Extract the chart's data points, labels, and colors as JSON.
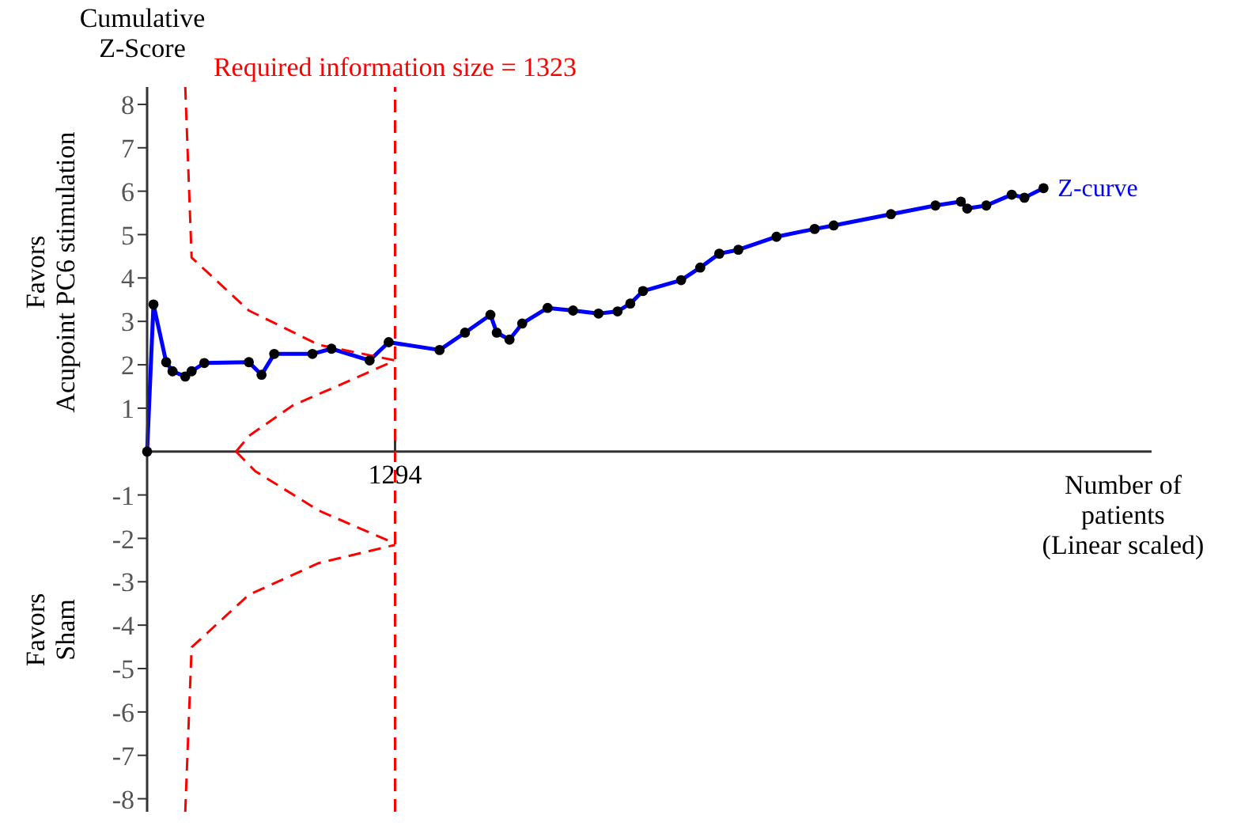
{
  "chart_data": {
    "type": "line",
    "ylabel": "Cumulative\nZ-Score",
    "xlabel": "Number of\npatients\n(Linear scaled)",
    "annotations": [
      "Favors\nAcupoint PC6 stimulation",
      "Favors\nSham",
      "Required information size = 1323"
    ],
    "categories": [
      null,
      null,
      null,
      null,
      null,
      null,
      null,
      null,
      null,
      null,
      null,
      null,
      null,
      null,
      null,
      null,
      null,
      null,
      null,
      null,
      null,
      null,
      null,
      null,
      null,
      null,
      null,
      null,
      null,
      null,
      null,
      null,
      null,
      null,
      null,
      null,
      null,
      null,
      null,
      "1294",
      null,
      null,
      null,
      null,
      null,
      null,
      null,
      null,
      null,
      null,
      null,
      null,
      null,
      null,
      null,
      null,
      null,
      null,
      null,
      null,
      null,
      null,
      null,
      null,
      null,
      null,
      null,
      null,
      null,
      null,
      null,
      null,
      null,
      null,
      null,
      null,
      null,
      null,
      null,
      null,
      null,
      null,
      null,
      null,
      null,
      null,
      null,
      null,
      null,
      null,
      null,
      null,
      null,
      null,
      null,
      null,
      null,
      null,
      null,
      null,
      null,
      null,
      null,
      null,
      null,
      null,
      null,
      null,
      null,
      null,
      null,
      null,
      null,
      null,
      null,
      null,
      null,
      null,
      null,
      null,
      null,
      null,
      null,
      null,
      null,
      null,
      null,
      null,
      null,
      null,
      null,
      null,
      null,
      null,
      null,
      null,
      null,
      null,
      null,
      null,
      null,
      null,
      null,
      null,
      null,
      null,
      null,
      null,
      null,
      null,
      null,
      null,
      null,
      null,
      null,
      null,
      null,
      null,
      null
    ],
    "ylim": [
      -8.3,
      8.4
    ],
    "yticks": [
      -8,
      -7,
      -6,
      -5,
      -4,
      -3,
      -2,
      -1,
      1,
      2,
      3,
      4,
      5,
      6,
      7,
      8
    ],
    "grid": false,
    "legend": false,
    "series": [
      {
        "name": "Z-curve",
        "color": "#0000ff",
        "marker": "circle",
        "line_style": "solid",
        "values": [
          0,
          3.39,
          null,
          2.06,
          1.85,
          null,
          1.73,
          1.85,
          null,
          2.04,
          null,
          null,
          null,
          null,
          null,
          null,
          2.06,
          null,
          1.77,
          null,
          2.25,
          null,
          null,
          null,
          null,
          null,
          2.25,
          null,
          null,
          2.37,
          null,
          null,
          null,
          null,
          null,
          2.1,
          null,
          null,
          2.52,
          null,
          null,
          null,
          null,
          null,
          null,
          null,
          2.34,
          null,
          null,
          null,
          2.74,
          null,
          null,
          null,
          3.15,
          2.74,
          null,
          2.58,
          null,
          2.95,
          null,
          null,
          null,
          3.31,
          null,
          null,
          null,
          3.25,
          null,
          null,
          null,
          3.18,
          null,
          null,
          3.23,
          null,
          3.41,
          null,
          3.7,
          null,
          null,
          null,
          null,
          null,
          3.95,
          null,
          null,
          4.24,
          null,
          null,
          4.56,
          null,
          null,
          4.65,
          null,
          null,
          null,
          null,
          null,
          4.95,
          null,
          null,
          null,
          null,
          null,
          5.13,
          null,
          null,
          5.21,
          null,
          null,
          null,
          null,
          null,
          null,
          null,
          null,
          5.47,
          null,
          null,
          null,
          null,
          null,
          null,
          5.67,
          null,
          null,
          null,
          5.76,
          5.6,
          null,
          null,
          5.67,
          null,
          null,
          null,
          5.92,
          null,
          5.85,
          null,
          null,
          6.07,
          null,
          null,
          null,
          null,
          null,
          null,
          null,
          null,
          null,
          null,
          null,
          null,
          null,
          null,
          null,
          null,
          null
        ]
      },
      {
        "color": "#ff0000",
        "marker": "none",
        "line_style": "dashed",
        "values": [
          null,
          null,
          null,
          null,
          null,
          null,
          8.4,
          4.47,
          null,
          null,
          null,
          null,
          null,
          null,
          null,
          null,
          3.25,
          null,
          null,
          null,
          null,
          null,
          null,
          null,
          null,
          null,
          null,
          2.46,
          null,
          null,
          null,
          null,
          null,
          null,
          null,
          null,
          null,
          null,
          null,
          2.1,
          null,
          null,
          null,
          null,
          null,
          null,
          null,
          null,
          null,
          null,
          null,
          null,
          null,
          null,
          null,
          null,
          null,
          null,
          null,
          null,
          null,
          null,
          null,
          null,
          null,
          null,
          null,
          null,
          null,
          null,
          null,
          null,
          null,
          null,
          null,
          null,
          null,
          null,
          null,
          null,
          null,
          null,
          null,
          null,
          null,
          null,
          null,
          null,
          null,
          null,
          null,
          null,
          null,
          null,
          null,
          null,
          null,
          null,
          null,
          null,
          null,
          null,
          null,
          null,
          null,
          null,
          null,
          null,
          null,
          null,
          null,
          null,
          null,
          null,
          null,
          null,
          null,
          null,
          null,
          null,
          null,
          null,
          null,
          null,
          null,
          null,
          null,
          null,
          null,
          null,
          null,
          null,
          null,
          null,
          null,
          null,
          null,
          null,
          null,
          null,
          null,
          null,
          null,
          null,
          null,
          null,
          null,
          null,
          null,
          null,
          null,
          null,
          null,
          null,
          null,
          null,
          null,
          null,
          null
        ]
      },
      {
        "color": "#ff0000",
        "marker": "none",
        "line_style": "dashed",
        "values": [
          null,
          null,
          null,
          null,
          null,
          null,
          null,
          null,
          null,
          null,
          null,
          null,
          null,
          null,
          0,
          null,
          0.36,
          null,
          null,
          null,
          null,
          null,
          null,
          1.07,
          null,
          null,
          null,
          null,
          null,
          1.45,
          null,
          null,
          null,
          null,
          null,
          null,
          null,
          null,
          null,
          2.1,
          null,
          null,
          null,
          null,
          null,
          null,
          null,
          null,
          null,
          null,
          null,
          null,
          null,
          null,
          null,
          null,
          null,
          null,
          null,
          null,
          null,
          null,
          null,
          null,
          null,
          null,
          null,
          null,
          null,
          null,
          null,
          null,
          null,
          null,
          null,
          null,
          null,
          null,
          null,
          null,
          null,
          null,
          null,
          null,
          null,
          null,
          null,
          null,
          null,
          null,
          null,
          null,
          null,
          null,
          null,
          null,
          null,
          null,
          null,
          null,
          null,
          null,
          null,
          null,
          null,
          null,
          null,
          null,
          null,
          null,
          null,
          null,
          null,
          null,
          null,
          null,
          null,
          null,
          null,
          null,
          null,
          null,
          null,
          null,
          null,
          null,
          null,
          null,
          null,
          null,
          null,
          null,
          null,
          null,
          null,
          null,
          null,
          null,
          null,
          null,
          null,
          null,
          null,
          null,
          null,
          null,
          null,
          null,
          null,
          null,
          null,
          null,
          null,
          null,
          null,
          null,
          null,
          null,
          null
        ]
      },
      {
        "color": "#ff0000",
        "marker": "none",
        "line_style": "dashed",
        "values": [
          null,
          null,
          null,
          null,
          null,
          null,
          null,
          null,
          null,
          null,
          null,
          null,
          null,
          null,
          0,
          null,
          null,
          -0.45,
          null,
          null,
          null,
          null,
          null,
          null,
          null,
          null,
          null,
          -1.36,
          null,
          null,
          null,
          null,
          null,
          null,
          null,
          null,
          null,
          null,
          null,
          -2.12,
          null,
          null,
          null,
          null,
          null,
          null,
          null,
          null,
          null,
          null,
          null,
          null,
          null,
          null,
          null,
          null,
          null,
          null,
          null,
          null,
          null,
          null,
          null,
          null,
          null,
          null,
          null,
          null,
          null,
          null,
          null,
          null,
          null,
          null,
          null,
          null,
          null,
          null,
          null,
          null,
          null,
          null,
          null,
          null,
          null,
          null,
          null,
          null,
          null,
          null,
          null,
          null,
          null,
          null,
          null,
          null,
          null,
          null,
          null,
          null,
          null,
          null,
          null,
          null,
          null,
          null,
          null,
          null,
          null,
          null,
          null,
          null,
          null,
          null,
          null,
          null,
          null,
          null,
          null,
          null,
          null,
          null,
          null,
          null,
          null,
          null,
          null,
          null,
          null,
          null,
          null,
          null,
          null,
          null,
          null,
          null,
          null,
          null,
          null,
          null,
          null,
          null,
          null,
          null,
          null,
          null,
          null,
          null,
          null,
          null,
          null,
          null,
          null,
          null,
          null,
          null,
          null,
          null,
          null
        ]
      },
      {
        "color": "#ff0000",
        "marker": "none",
        "line_style": "dashed",
        "values": [
          null,
          null,
          null,
          null,
          null,
          null,
          -8.3,
          -4.51,
          null,
          null,
          null,
          null,
          null,
          null,
          null,
          null,
          -3.3,
          null,
          null,
          null,
          null,
          null,
          null,
          null,
          null,
          null,
          null,
          -2.57,
          null,
          null,
          null,
          null,
          null,
          null,
          null,
          null,
          null,
          null,
          null,
          -2.15,
          null,
          null,
          null,
          null,
          null,
          null,
          null,
          null,
          null,
          null,
          null,
          null,
          null,
          null,
          null,
          null,
          null,
          null,
          null,
          null,
          null,
          null,
          null,
          null,
          null,
          null,
          null,
          null,
          null,
          null,
          null,
          null,
          null,
          null,
          null,
          null,
          null,
          null,
          null,
          null,
          null,
          null,
          null,
          null,
          null,
          null,
          null,
          null,
          null,
          null,
          null,
          null,
          null,
          null,
          null,
          null,
          null,
          null,
          null,
          null,
          null,
          null,
          null,
          null,
          null,
          null,
          null,
          null,
          null,
          null,
          null,
          null,
          null,
          null,
          null,
          null,
          null,
          null,
          null,
          null,
          null,
          null,
          null,
          null,
          null,
          null,
          null,
          null,
          null,
          null,
          null,
          null,
          null,
          null,
          null,
          null,
          null,
          null,
          null,
          null,
          null,
          null,
          null,
          null,
          null,
          null,
          null,
          null,
          null,
          null,
          null,
          null,
          null,
          null,
          null,
          null,
          null,
          null,
          null
        ]
      }
    ]
  }
}
